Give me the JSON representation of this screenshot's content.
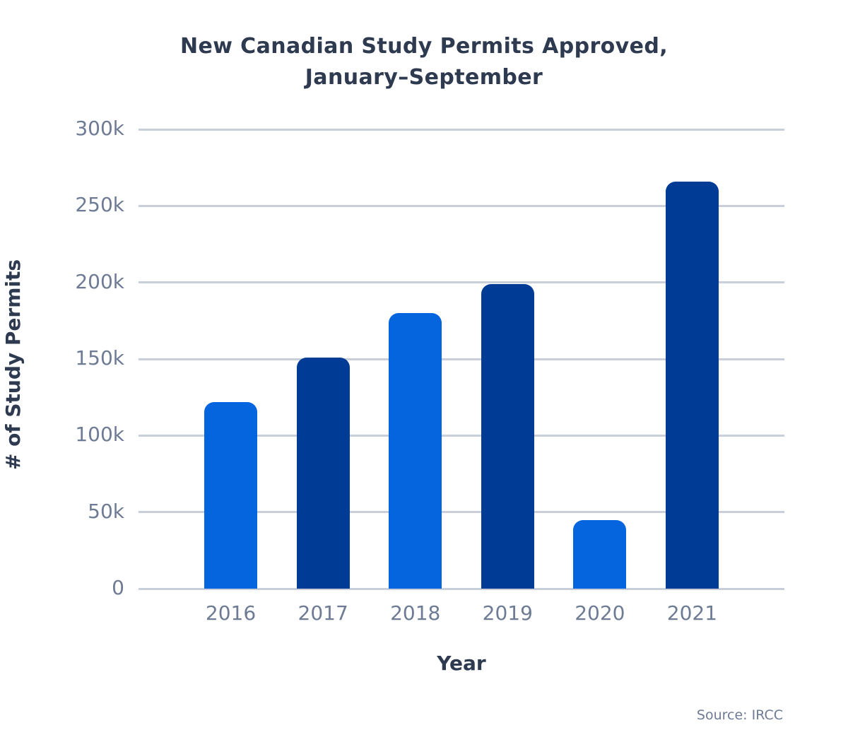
{
  "chart_data": {
    "type": "bar",
    "title": "New Canadian Study Permits Approved, January–September",
    "title_lines": [
      "New Canadian Study Permits Approved,",
      "January–September"
    ],
    "categories": [
      "2016",
      "2017",
      "2018",
      "2019",
      "2020",
      "2021"
    ],
    "values": [
      122000,
      151000,
      180000,
      199000,
      45000,
      266000
    ],
    "bar_colors": [
      "#0565df",
      "#003b96",
      "#0565df",
      "#003b96",
      "#0565df",
      "#003b96"
    ],
    "xlabel": "Year",
    "ylabel": "# of Study Permits",
    "ylim": [
      0,
      300000
    ],
    "yticks": [
      0,
      50000,
      100000,
      150000,
      200000,
      250000,
      300000
    ],
    "ytick_labels": [
      "0",
      "50k",
      "100k",
      "150k",
      "200k",
      "250k",
      "300k"
    ],
    "grid": true,
    "legend": false,
    "source": "Source: IRCC",
    "colors": {
      "light_blue": "#0565df",
      "dark_blue": "#003b96",
      "gridline": "#c9cfda",
      "tick_text": "#6e7b94",
      "title_text": "#2e3a50"
    }
  }
}
